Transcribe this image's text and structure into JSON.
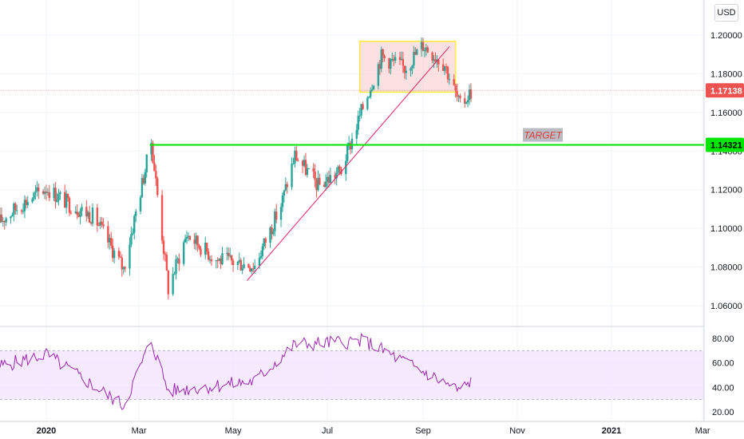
{
  "currency_label": "USD",
  "price_scale": {
    "ticks": [
      "1.20000",
      "1.18000",
      "1.16000",
      "1.14000",
      "1.12000",
      "1.10000",
      "1.08000",
      "1.06000"
    ],
    "tick_values": [
      1.2,
      1.18,
      1.16,
      1.14,
      1.12,
      1.1,
      1.08,
      1.06
    ],
    "last_price_label": "1.17138",
    "last_price": 1.17138,
    "last_price_color": "#ef5350",
    "level_label": "1.14321",
    "level_price": 1.14321,
    "level_color": "#00e600"
  },
  "rsi_scale": {
    "ticks": [
      "80.00",
      "60.00",
      "40.00",
      "20.00"
    ],
    "tick_values": [
      80,
      60,
      40,
      20
    ],
    "band_upper": 70,
    "band_lower": 30,
    "line_color": "#9c27b0",
    "band_color": "#f3e5ff"
  },
  "time_axis": {
    "labels": [
      "2020",
      "Mar",
      "May",
      "Jul",
      "Sep",
      "Nov",
      "2021",
      "Mar"
    ]
  },
  "annotation": {
    "target_label": "TARGET"
  },
  "colors": {
    "up": "#26a69a",
    "down": "#ef5350",
    "trendline": "#e91e63",
    "zone_fill": "#f8c8c8",
    "zone_border": "#ffeb3b"
  },
  "chart_data": {
    "type": "candlestick",
    "title": "",
    "xlabel": "",
    "ylabel": "",
    "ylim": [
      1.05,
      1.21
    ],
    "x_range": [
      "2019-12-01",
      "2021-03-15"
    ],
    "ohlc_daily_approx": [
      {
        "date": "2019-12-01",
        "close": 1.103
      },
      {
        "date": "2019-12-15",
        "close": 1.112
      },
      {
        "date": "2020-01-01",
        "close": 1.121
      },
      {
        "date": "2020-01-15",
        "close": 1.113
      },
      {
        "date": "2020-02-01",
        "close": 1.106
      },
      {
        "date": "2020-02-20",
        "close": 1.079
      },
      {
        "date": "2020-03-09",
        "close": 1.145
      },
      {
        "date": "2020-03-20",
        "close": 1.069
      },
      {
        "date": "2020-04-01",
        "close": 1.097
      },
      {
        "date": "2020-04-20",
        "close": 1.084
      },
      {
        "date": "2020-05-15",
        "close": 1.081
      },
      {
        "date": "2020-06-01",
        "close": 1.112
      },
      {
        "date": "2020-06-10",
        "close": 1.138
      },
      {
        "date": "2020-06-25",
        "close": 1.122
      },
      {
        "date": "2020-07-10",
        "close": 1.13
      },
      {
        "date": "2020-07-25",
        "close": 1.165
      },
      {
        "date": "2020-08-05",
        "close": 1.189
      },
      {
        "date": "2020-08-20",
        "close": 1.183
      },
      {
        "date": "2020-09-01",
        "close": 1.195
      },
      {
        "date": "2020-09-15",
        "close": 1.185
      },
      {
        "date": "2020-09-25",
        "close": 1.163
      },
      {
        "date": "2020-10-02",
        "close": 1.171
      }
    ],
    "series_rsi": [
      {
        "date": "2020-01-01",
        "value": 67
      },
      {
        "date": "2020-02-20",
        "value": 25
      },
      {
        "date": "2020-03-09",
        "value": 78
      },
      {
        "date": "2020-03-20",
        "value": 37
      },
      {
        "date": "2020-05-15",
        "value": 45
      },
      {
        "date": "2020-06-10",
        "value": 75
      },
      {
        "date": "2020-07-25",
        "value": 78
      },
      {
        "date": "2020-09-25",
        "value": 37
      },
      {
        "date": "2020-10-02",
        "value": 45
      }
    ]
  }
}
